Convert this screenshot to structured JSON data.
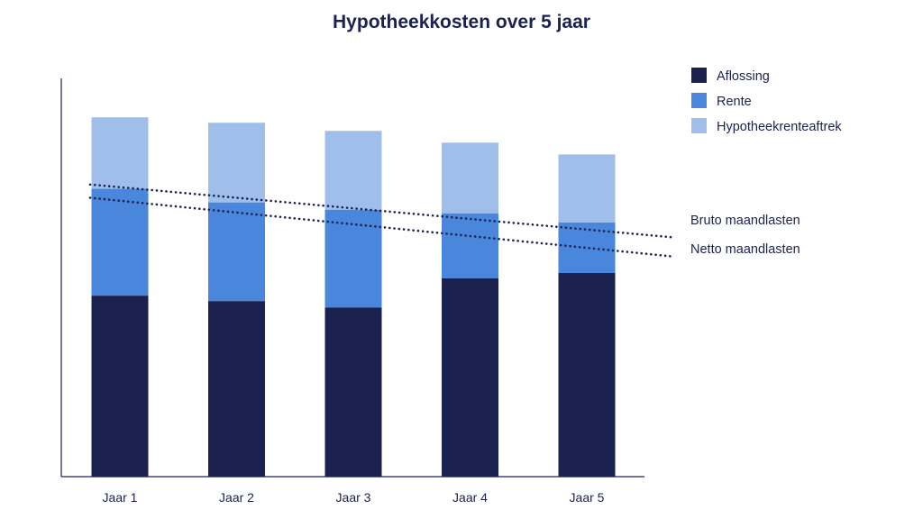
{
  "chart_data": {
    "type": "bar",
    "stacked": true,
    "title": "Hypotheekkosten over 5 jaar",
    "categories": [
      "Jaar 1",
      "Jaar 2",
      "Jaar 3",
      "Jaar 4",
      "Jaar 5"
    ],
    "series": [
      {
        "name": "Aflossing",
        "color": "#1b2250",
        "values": [
          200,
          194,
          187,
          219,
          225
        ]
      },
      {
        "name": "Rente",
        "color": "#4a86dc",
        "values": [
          118,
          109,
          108,
          72,
          56
        ]
      },
      {
        "name": "Hypotheekrenteaftrek",
        "color": "#9fbfea",
        "values": [
          79,
          88,
          87,
          78,
          75
        ]
      }
    ],
    "lines": [
      {
        "name": "Bruto maandlasten",
        "values": [
          320,
          308,
          296,
          285,
          273
        ]
      },
      {
        "name": "Netto maandlasten",
        "values": [
          304,
          292,
          280,
          266,
          252
        ]
      }
    ],
    "ylim": [
      0,
      440
    ],
    "legend_position": "top-right",
    "grid": false
  }
}
